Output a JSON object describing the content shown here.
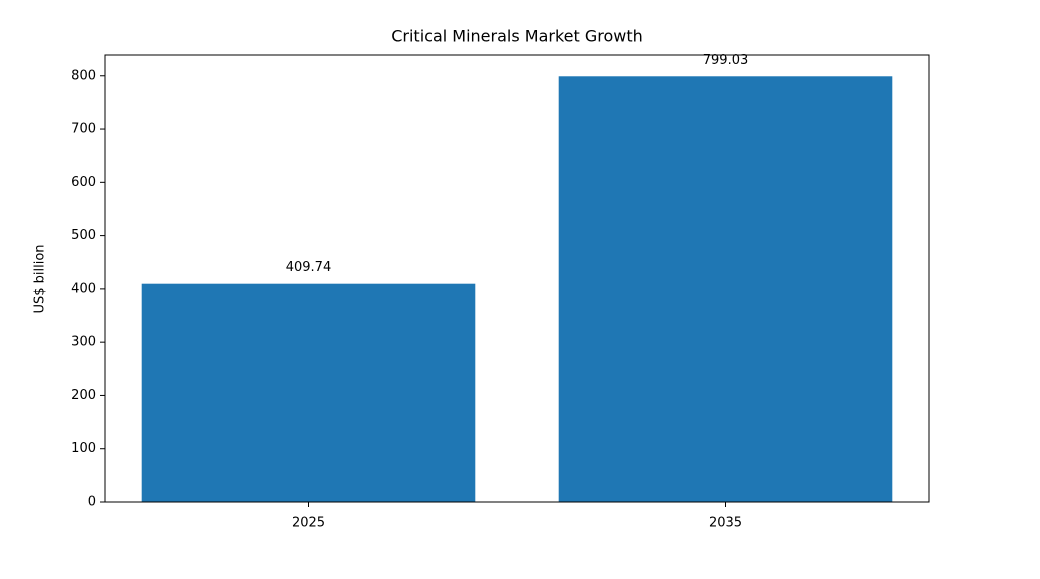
{
  "chart_data": {
    "type": "bar",
    "title": "Critical Minerals Market Growth",
    "y_label": "US$ billion",
    "categories": [
      "2025",
      "2035"
    ],
    "values": [
      409.74,
      799.03
    ],
    "color": "#1f77b4",
    "ylim": [
      0,
      838.98
    ],
    "yticks": [
      0,
      100,
      200,
      300,
      400,
      500,
      600,
      700,
      800
    ],
    "grid": false
  }
}
